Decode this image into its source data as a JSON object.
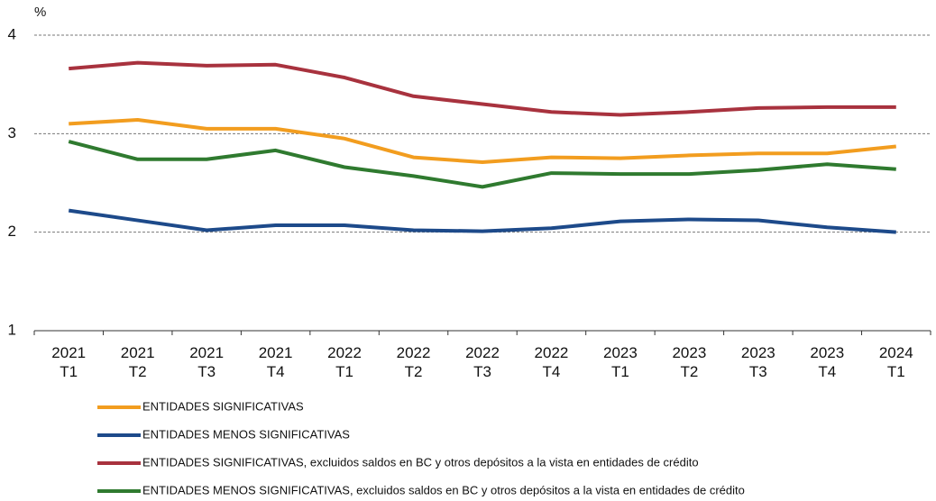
{
  "chart_data": {
    "type": "line",
    "y_label": "%",
    "categories": [
      "2021\nT1",
      "2021\nT2",
      "2021\nT3",
      "2021\nT4",
      "2022\nT1",
      "2022\nT2",
      "2022\nT3",
      "2022\nT4",
      "2023\nT1",
      "2023\nT2",
      "2023\nT3",
      "2023\nT4",
      "2024\nT1"
    ],
    "series": [
      {
        "name": "ENTIDADES SIGNIFICATIVAS",
        "color": "#f29d1f",
        "values": [
          3.1,
          3.14,
          3.05,
          3.05,
          2.95,
          2.76,
          2.71,
          2.76,
          2.75,
          2.78,
          2.8,
          2.8,
          2.87
        ]
      },
      {
        "name": "ENTIDADES MENOS SIGNIFICATIVAS",
        "color": "#1d4a8a",
        "values": [
          2.22,
          2.12,
          2.02,
          2.07,
          2.07,
          2.02,
          2.01,
          2.04,
          2.11,
          2.13,
          2.12,
          2.05,
          2.0
        ]
      },
      {
        "name": "ENTIDADES SIGNIFICATIVAS, excluidos saldos en BC y otros depósitos a la vista en entidades de crédito",
        "color": "#a8323e",
        "values": [
          3.66,
          3.72,
          3.69,
          3.7,
          3.57,
          3.38,
          3.3,
          3.22,
          3.19,
          3.22,
          3.26,
          3.27,
          3.27
        ]
      },
      {
        "name": "ENTIDADES MENOS SIGNIFICATIVAS, excluidos saldos en BC y otros depósitos a la vista en entidades de crédito",
        "color": "#2f7a2f",
        "values": [
          2.92,
          2.74,
          2.74,
          2.83,
          2.66,
          2.57,
          2.46,
          2.6,
          2.59,
          2.59,
          2.63,
          2.69,
          2.64
        ]
      }
    ],
    "ylim": [
      1,
      4
    ],
    "yticks": [
      1,
      2,
      3,
      4
    ],
    "grid": true
  }
}
